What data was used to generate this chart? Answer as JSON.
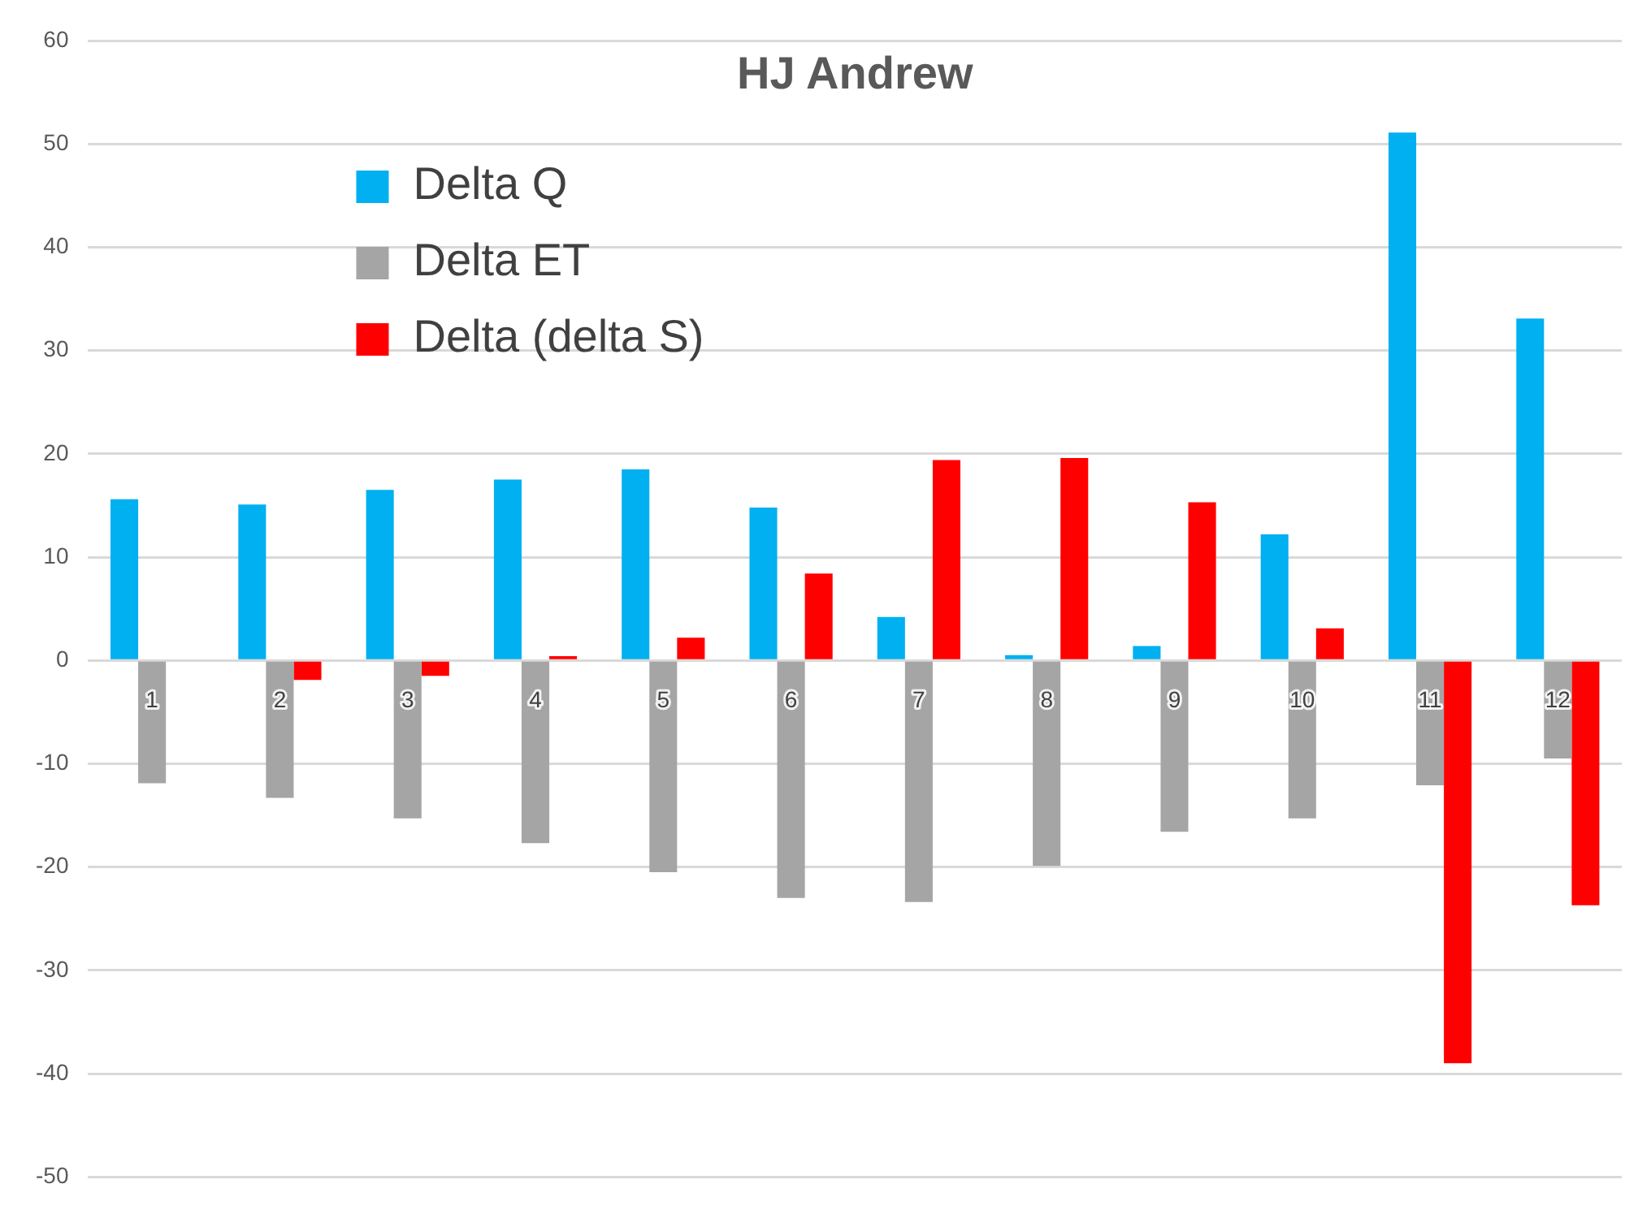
{
  "chart_data": {
    "type": "bar",
    "title": "HJ Andrew",
    "categories": [
      "1",
      "2",
      "3",
      "4",
      "5",
      "6",
      "7",
      "8",
      "9",
      "10",
      "11",
      "12"
    ],
    "series": [
      {
        "name": "Delta Q",
        "color": "#00b0f0",
        "values": [
          15.6,
          15.1,
          16.5,
          17.5,
          18.5,
          14.8,
          4.2,
          0.5,
          1.4,
          12.2,
          51.1,
          33.1
        ]
      },
      {
        "name": "Delta ET",
        "color": "#a5a5a5",
        "values": [
          -11.9,
          -13.3,
          -15.3,
          -17.7,
          -20.5,
          -23.0,
          -23.4,
          -19.9,
          -16.6,
          -15.3,
          -12.1,
          -9.5
        ]
      },
      {
        "name": "Delta (delta S)",
        "color": "#ff0000",
        "values": [
          0,
          -1.9,
          -1.5,
          0.4,
          2.2,
          8.4,
          19.4,
          19.6,
          15.3,
          3.1,
          -39.0,
          -23.7
        ]
      }
    ],
    "ylim": [
      -50,
      60
    ],
    "yticks": [
      -50,
      -40,
      -30,
      -20,
      -10,
      0,
      10,
      20,
      30,
      40,
      50,
      60
    ],
    "grid": "y",
    "legend": "top left"
  }
}
